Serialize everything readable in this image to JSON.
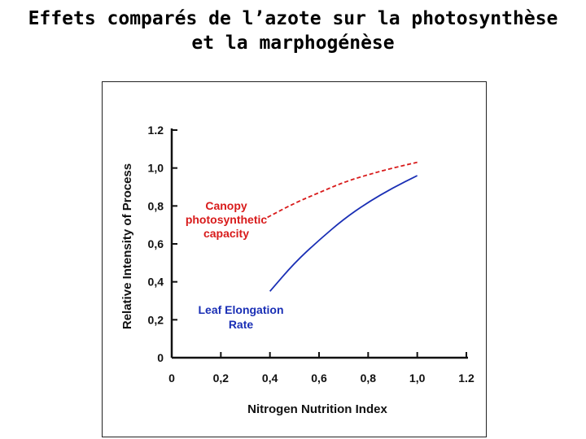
{
  "slide": {
    "title_line1": "Effets comparés de l’azote sur la photosynthèse",
    "title_line2": "et la marphogénèse"
  },
  "colors": {
    "canopy": "#d81b1b",
    "leaf": "#1a2fb5",
    "axis": "#111111"
  },
  "chart_data": {
    "type": "line",
    "xlabel": "Nitrogen Nutrition Index",
    "ylabel": "Relative Intensity of Process",
    "xlim": [
      0,
      1.2
    ],
    "ylim": [
      0,
      1.2
    ],
    "x_ticks": [
      "0",
      "0,2",
      "0,4",
      "0,6",
      "0,8",
      "1,0",
      "1.2"
    ],
    "y_ticks": [
      "0",
      "0,2",
      "0,4",
      "0,6",
      "0,8",
      "1,0",
      "1.2"
    ],
    "grid": false,
    "series": [
      {
        "name": "Canopy photosynthetic capacity",
        "label_lines": [
          "Canopy",
          "photosynthetic",
          "capacity"
        ],
        "style": "dashed",
        "color": "#d81b1b",
        "points": [
          [
            0.39,
            0.74
          ],
          [
            0.5,
            0.815
          ],
          [
            0.6,
            0.87
          ],
          [
            0.7,
            0.925
          ],
          [
            0.8,
            0.965
          ],
          [
            0.9,
            1.0
          ],
          [
            1.0,
            1.03
          ]
        ]
      },
      {
        "name": "Leaf Elongation Rate",
        "label_lines": [
          "Leaf Elongation",
          "Rate"
        ],
        "style": "solid",
        "color": "#1a2fb5",
        "points": [
          [
            0.4,
            0.35
          ],
          [
            0.5,
            0.5
          ],
          [
            0.6,
            0.62
          ],
          [
            0.7,
            0.73
          ],
          [
            0.8,
            0.82
          ],
          [
            0.9,
            0.895
          ],
          [
            1.0,
            0.96
          ]
        ]
      }
    ]
  }
}
